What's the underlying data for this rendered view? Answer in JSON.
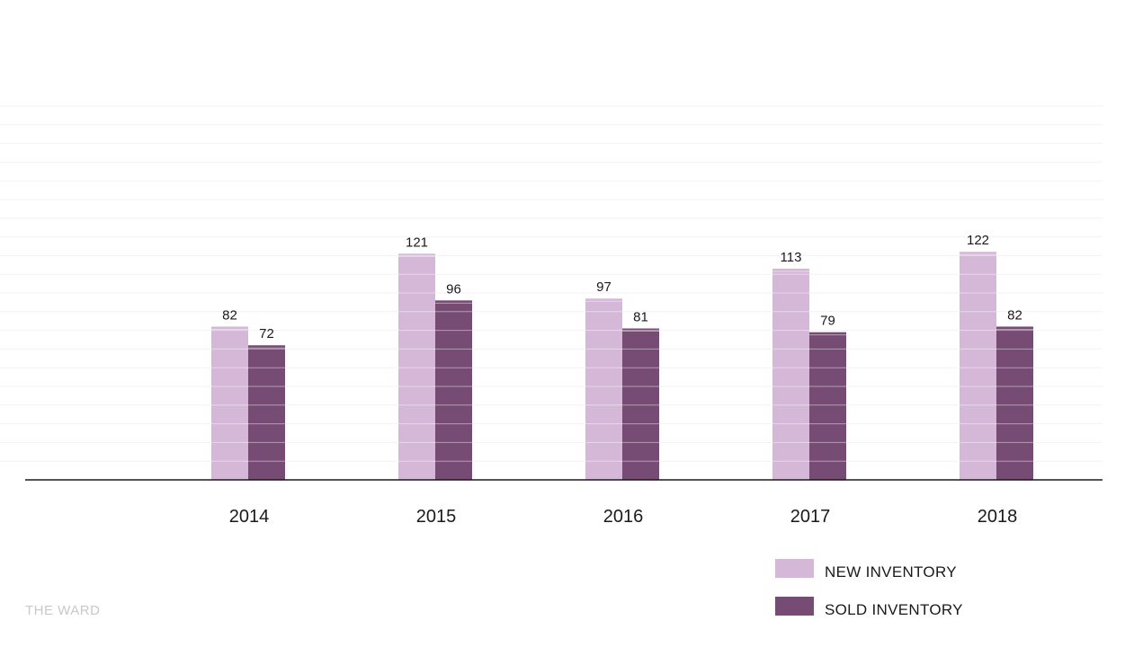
{
  "colors": {
    "new_inventory": "#d5b8d8",
    "sold_inventory": "#774c74",
    "axis": "#1a1a1a",
    "grid": "#f2f2f2",
    "band": "#ffffff"
  },
  "source": "THE WARD",
  "legend": {
    "placement": "bottom-right",
    "items": [
      {
        "label": "NEW INVENTORY"
      },
      {
        "label": "SOLD INVENTORY"
      }
    ]
  },
  "chart_data": {
    "type": "bar",
    "title": "",
    "xlabel": "",
    "ylabel": "",
    "categories": [
      "2014",
      "2015",
      "2016",
      "2017",
      "2018"
    ],
    "series": [
      {
        "name": "NEW INVENTORY",
        "values": [
          82,
          121,
          97,
          113,
          122
        ]
      },
      {
        "name": "SOLD INVENTORY",
        "values": [
          72,
          96,
          81,
          79,
          82
        ]
      }
    ],
    "ylim": [
      0,
      200
    ],
    "grid": true,
    "data_labels": true
  }
}
